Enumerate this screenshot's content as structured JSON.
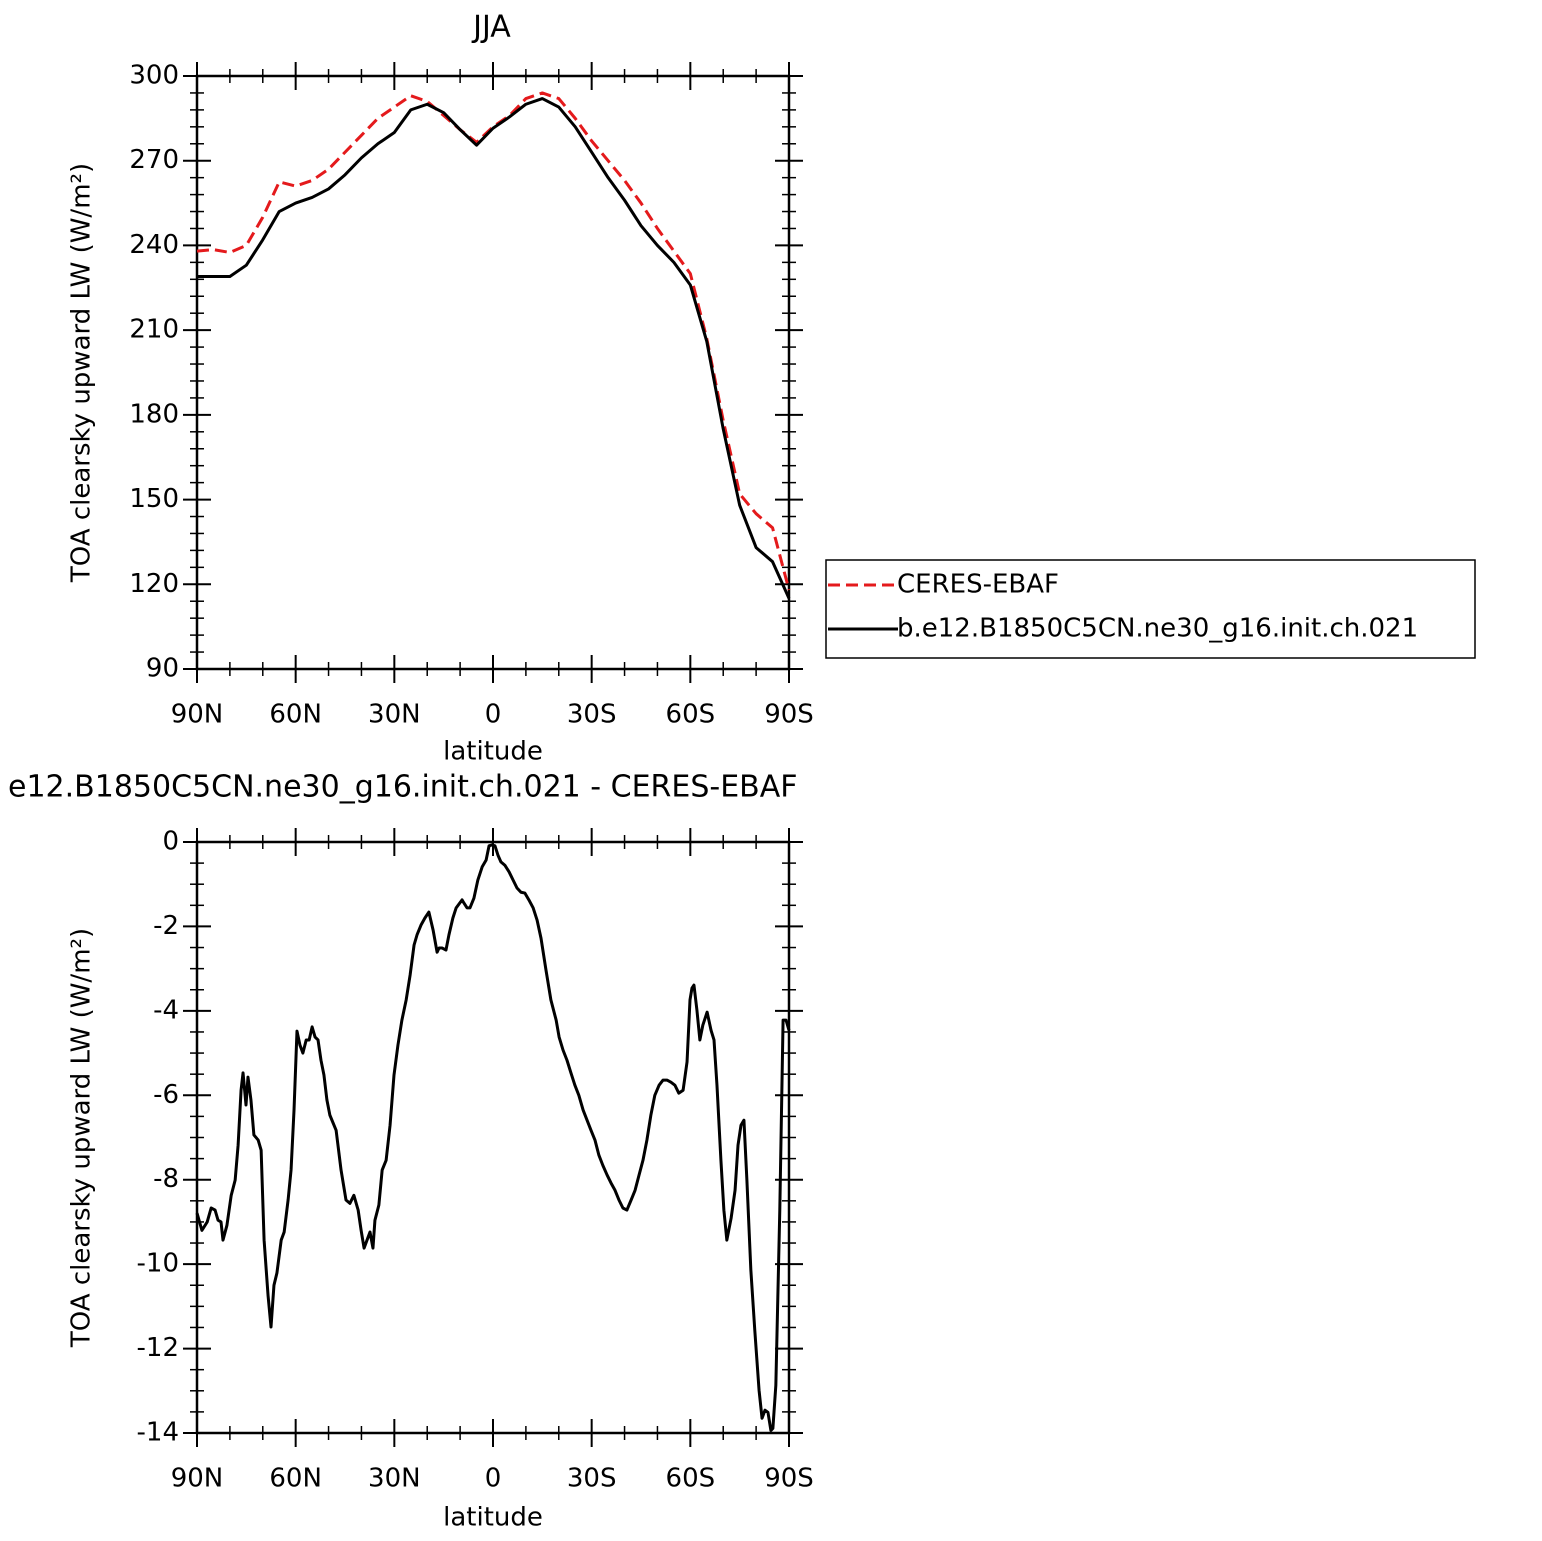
{
  "chart_data": [
    {
      "type": "line",
      "title": "JJA",
      "x_label": "latitude",
      "y_label": "TOA clearsky upward LW (W/m²)",
      "x": [
        90,
        85,
        80,
        75,
        70,
        65,
        60,
        55,
        50,
        45,
        40,
        35,
        30,
        25,
        20,
        15,
        10,
        5,
        0,
        -5,
        -10,
        -15,
        -20,
        -25,
        -30,
        -35,
        -40,
        -45,
        -50,
        -55,
        -60,
        -65,
        -70,
        -75,
        -80,
        -85,
        -90
      ],
      "series": [
        {
          "name": "CERES-EBAF",
          "color": "#e41a1c",
          "line_style": "dashed",
          "values": [
            238,
            238.5,
            237.5,
            240,
            250,
            262.5,
            261,
            263,
            267,
            273,
            279,
            285,
            289,
            293,
            291,
            286,
            281,
            276.5,
            282,
            286,
            292,
            294,
            292,
            285,
            277,
            270,
            263,
            255,
            246,
            238,
            230,
            207,
            178,
            152,
            145,
            140,
            118
          ]
        },
        {
          "name": "b.e12.B1850C5CN.ne30_g16.init.ch.021",
          "color": "#000000",
          "line_style": "solid",
          "values": [
            229,
            229,
            229,
            233,
            242,
            252,
            255,
            257,
            260,
            265,
            271,
            276,
            280,
            288,
            290,
            287,
            281,
            275.5,
            281.5,
            285.5,
            290,
            292,
            289,
            282,
            273,
            264,
            256,
            247,
            240,
            234,
            226,
            206,
            175,
            148,
            133,
            128,
            115
          ]
        }
      ],
      "xlim": [
        90,
        -90
      ],
      "xticks": [
        {
          "value": 90,
          "label": "90N"
        },
        {
          "value": 60,
          "label": "60N"
        },
        {
          "value": 30,
          "label": "30N"
        },
        0,
        {
          "value": -30,
          "label": "30S"
        },
        {
          "value": -60,
          "label": "60S"
        },
        {
          "value": -90,
          "label": "90S"
        }
      ],
      "ylim": [
        90,
        300
      ],
      "yticks": [
        90,
        120,
        150,
        180,
        210,
        240,
        270,
        300
      ],
      "legend": "right"
    },
    {
      "type": "line",
      "title": "e12.B1850C5CN.ne30_g16.init.ch.021 - CERES-EBAF",
      "x_label": "latitude",
      "y_label": "TOA clearsky upward LW (W/m²)",
      "x": [
        90,
        88.5,
        86.9,
        85.7,
        84.5,
        83.6,
        82.7,
        82.1,
        80.9,
        79.6,
        78.4,
        77.5,
        76.6,
        76.0,
        75.1,
        74.5,
        73.6,
        72.7,
        71.4,
        70.5,
        69.6,
        68.4,
        67.5,
        66.6,
        65.7,
        64.4,
        63.5,
        62.3,
        61.4,
        60.5,
        59.6,
        58.7,
        57.8,
        56.8,
        55.9,
        55.0,
        54.1,
        53.2,
        52.3,
        51.4,
        50.5,
        49.6,
        47.7,
        46.2,
        44.7,
        43.5,
        42.3,
        41.0,
        40.1,
        39.2,
        38.3,
        37.4,
        36.5,
        35.9,
        34.7,
        33.7,
        32.5,
        31.3,
        30.1,
        28.9,
        27.7,
        26.4,
        25.2,
        24.0,
        23.1,
        21.9,
        20.7,
        19.5,
        18.2,
        17.0,
        16.4,
        15.5,
        14.3,
        13.4,
        12.2,
        11.2,
        9.4,
        8.8,
        7.9,
        7.0,
        5.8,
        4.6,
        3.3,
        2.1,
        1.2,
        0.3,
        -0.6,
        -1.5,
        -2.4,
        -3.6,
        -4.9,
        -6.1,
        -7.3,
        -8.5,
        -9.7,
        -10.9,
        -12.2,
        -13.4,
        -14.6,
        -16.1,
        -17.6,
        -19.2,
        -20.1,
        -21.3,
        -22.5,
        -23.7,
        -24.9,
        -26.1,
        -27.4,
        -28.6,
        -29.8,
        -31.0,
        -32.2,
        -33.4,
        -34.7,
        -35.9,
        -37.1,
        -38.3,
        -39.5,
        -40.7,
        -42.0,
        -43.2,
        -44.4,
        -45.6,
        -46.8,
        -48.0,
        -49.2,
        -50.5,
        -51.7,
        -52.9,
        -54.1,
        -55.3,
        -56.5,
        -57.8,
        -59.0,
        -59.9,
        -60.5,
        -61.1,
        -62.0,
        -62.9,
        -63.8,
        -65.1,
        -66.3,
        -67.2,
        -68.1,
        -69.3,
        -70.2,
        -71.1,
        -72.4,
        -73.6,
        -74.5,
        -75.4,
        -76.3,
        -77.2,
        -78.4,
        -79.6,
        -80.9,
        -81.8,
        -82.7,
        -83.6,
        -84.5,
        -85.1,
        -86.0,
        -87.2,
        -88.2,
        -89.1,
        -90
      ],
      "series": [
        {
          "color": "#000000",
          "line_style": "solid",
          "values": [
            -8.79,
            -9.2,
            -9.0,
            -8.67,
            -8.72,
            -8.96,
            -9.0,
            -9.43,
            -9.08,
            -8.37,
            -8.01,
            -7.18,
            -5.88,
            -5.47,
            -6.23,
            -5.57,
            -6.11,
            -6.94,
            -7.06,
            -7.3,
            -9.43,
            -10.74,
            -11.49,
            -10.5,
            -10.21,
            -9.43,
            -9.24,
            -8.48,
            -7.77,
            -6.35,
            -4.48,
            -4.81,
            -5.0,
            -4.69,
            -4.69,
            -4.38,
            -4.62,
            -4.69,
            -5.17,
            -5.52,
            -6.11,
            -6.47,
            -6.83,
            -7.77,
            -8.48,
            -8.56,
            -8.37,
            -8.72,
            -9.2,
            -9.62,
            -9.43,
            -9.24,
            -9.62,
            -8.96,
            -8.6,
            -7.77,
            -7.54,
            -6.71,
            -5.52,
            -4.81,
            -4.22,
            -3.74,
            -3.15,
            -2.44,
            -2.2,
            -1.97,
            -1.8,
            -1.66,
            -2.09,
            -2.61,
            -2.51,
            -2.51,
            -2.56,
            -2.2,
            -1.8,
            -1.56,
            -1.37,
            -1.45,
            -1.56,
            -1.56,
            -1.33,
            -0.9,
            -0.59,
            -0.43,
            -0.09,
            -0.07,
            -0.09,
            -0.31,
            -0.47,
            -0.55,
            -0.71,
            -0.9,
            -1.09,
            -1.19,
            -1.21,
            -1.37,
            -1.56,
            -1.85,
            -2.28,
            -3.03,
            -3.74,
            -4.22,
            -4.62,
            -4.93,
            -5.17,
            -5.47,
            -5.76,
            -6.0,
            -6.35,
            -6.59,
            -6.83,
            -7.06,
            -7.42,
            -7.66,
            -7.89,
            -8.08,
            -8.25,
            -8.48,
            -8.67,
            -8.72,
            -8.48,
            -8.25,
            -7.89,
            -7.54,
            -7.06,
            -6.47,
            -6.0,
            -5.76,
            -5.64,
            -5.64,
            -5.69,
            -5.76,
            -5.95,
            -5.88,
            -5.21,
            -3.74,
            -3.46,
            -3.39,
            -3.98,
            -4.69,
            -4.34,
            -4.03,
            -4.46,
            -4.69,
            -5.76,
            -7.54,
            -8.72,
            -9.43,
            -8.91,
            -8.25,
            -7.18,
            -6.71,
            -6.59,
            -8.01,
            -10.14,
            -11.57,
            -12.99,
            -13.65,
            -13.46,
            -13.51,
            -13.94,
            -13.89,
            -12.87,
            -8.72,
            -4.22,
            -4.22,
            -4.46
          ]
        }
      ],
      "xlim": [
        90,
        -90
      ],
      "xticks": [
        {
          "value": 90,
          "label": "90N"
        },
        {
          "value": 60,
          "label": "60N"
        },
        {
          "value": 30,
          "label": "30N"
        },
        0,
        {
          "value": -30,
          "label": "30S"
        },
        {
          "value": -60,
          "label": "60S"
        },
        {
          "value": -90,
          "label": "90S"
        }
      ],
      "ylim": [
        -14,
        0
      ],
      "yticks": [
        -14,
        -12,
        -10,
        -8,
        -6,
        -4,
        -2,
        0
      ]
    }
  ]
}
